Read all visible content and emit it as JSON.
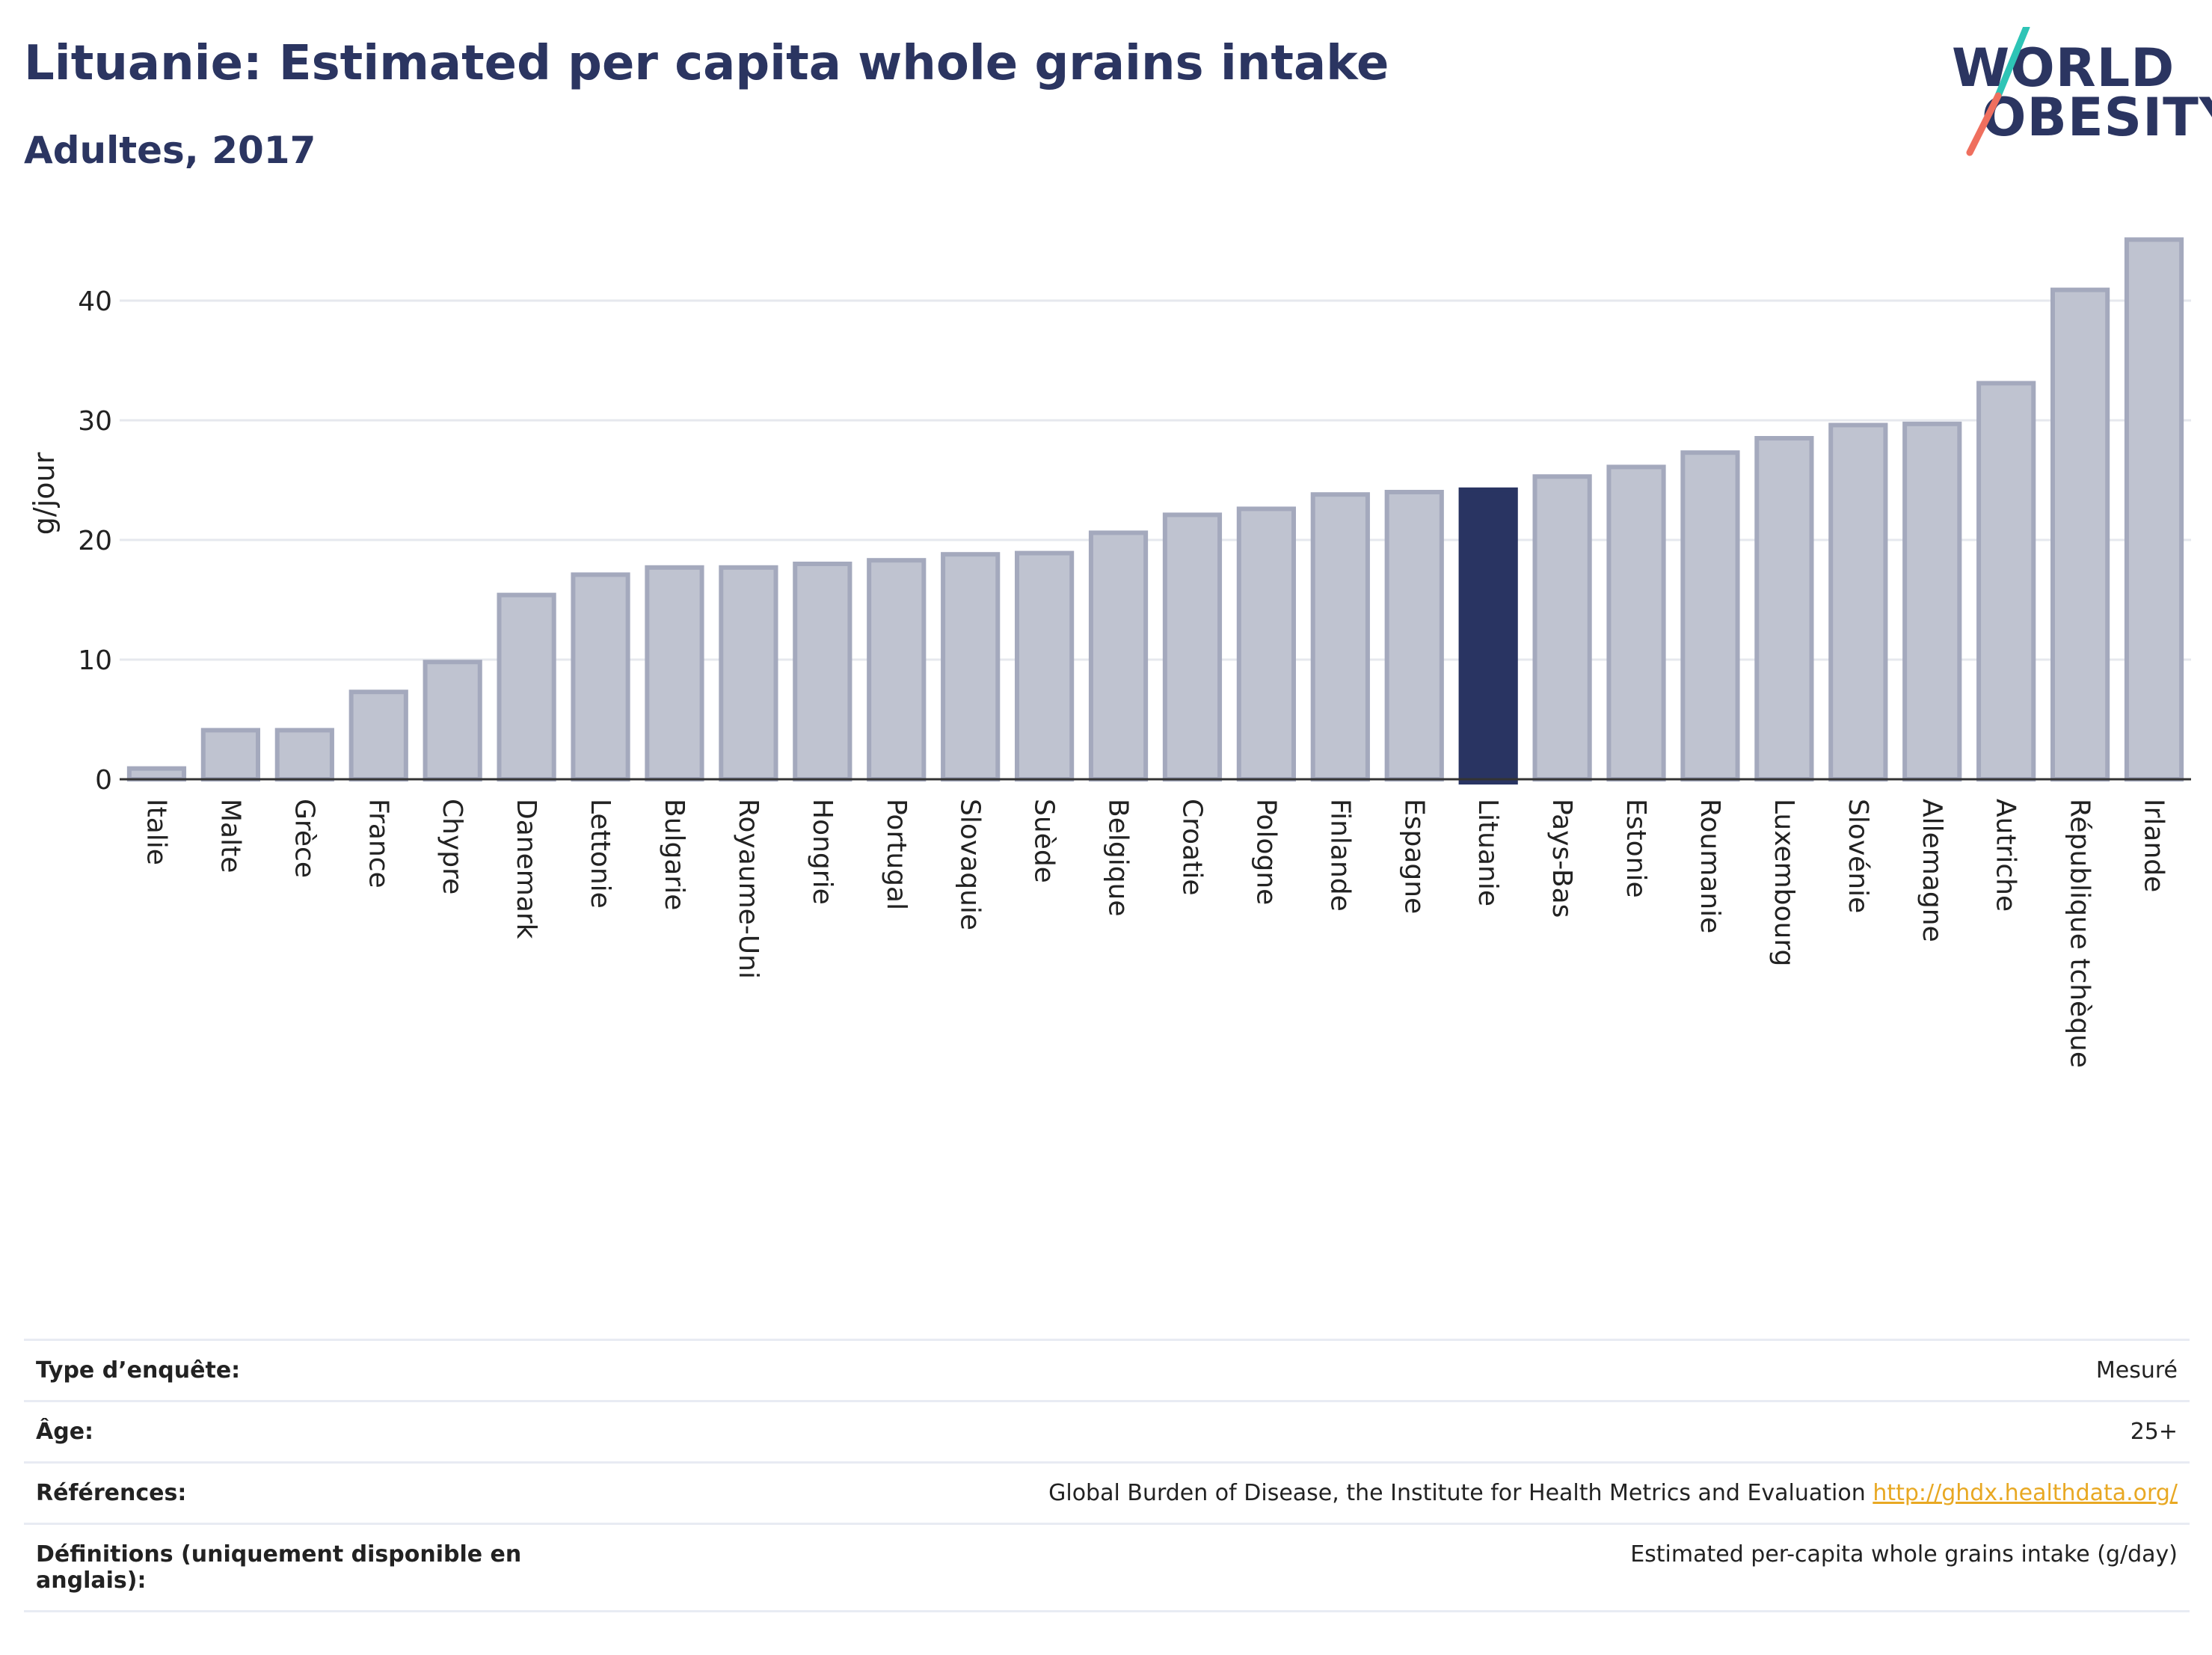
{
  "header": {
    "title": "Lituanie: Estimated per capita whole grains intake",
    "subtitle": "Adultes, 2017",
    "logo_line1": "WORLD",
    "logo_line2": "OBESITY"
  },
  "colors": {
    "highlight": "#293462",
    "bar_fill": "#bfc3d0",
    "bar_stroke": "#a4a9bd",
    "logo_teal": "#2ec4b6",
    "logo_coral": "#ef6f5e",
    "link": "#e8a823"
  },
  "chart_data": {
    "type": "bar",
    "title": "Lituanie: Estimated per capita whole grains intake",
    "subtitle": "Adultes, 2017",
    "ylabel": "g/jour",
    "ylim": [
      0,
      47
    ],
    "yticks": [
      0,
      10,
      20,
      30,
      40
    ],
    "grid": true,
    "highlight_category": "Lituanie",
    "categories": [
      "Italie",
      "Malte",
      "Grèce",
      "France",
      "Chypre",
      "Danemark",
      "Lettonie",
      "Bulgarie",
      "Royaume-Uni",
      "Hongrie",
      "Portugal",
      "Slovaquie",
      "Suède",
      "Belgique",
      "Croatie",
      "Pologne",
      "Finlande",
      "Espagne",
      "Lituanie",
      "Pays-Bas",
      "Estonie",
      "Roumanie",
      "Luxembourg",
      "Slovénie",
      "Allemagne",
      "Autriche",
      "République tchèque",
      "Irlande"
    ],
    "values": [
      0.9,
      4.1,
      4.1,
      7.3,
      9.8,
      15.4,
      17.1,
      17.7,
      17.7,
      18.0,
      18.3,
      18.8,
      18.9,
      20.6,
      22.1,
      22.6,
      23.8,
      24.0,
      24.2,
      25.3,
      26.1,
      27.3,
      28.5,
      29.6,
      29.7,
      33.1,
      40.9,
      45.1
    ]
  },
  "info": {
    "rows": [
      {
        "key": "Type d’enquête:",
        "value": "Mesuré"
      },
      {
        "key": "Âge:",
        "value": "25+"
      },
      {
        "key": "Références:",
        "value": "Global Burden of Disease, the Institute for Health Metrics and Evaluation",
        "link": "http://ghdx.healthdata.org/"
      },
      {
        "key": "Définitions (uniquement disponible en anglais):",
        "value": "Estimated per-capita whole grains intake (g/day)"
      }
    ]
  }
}
